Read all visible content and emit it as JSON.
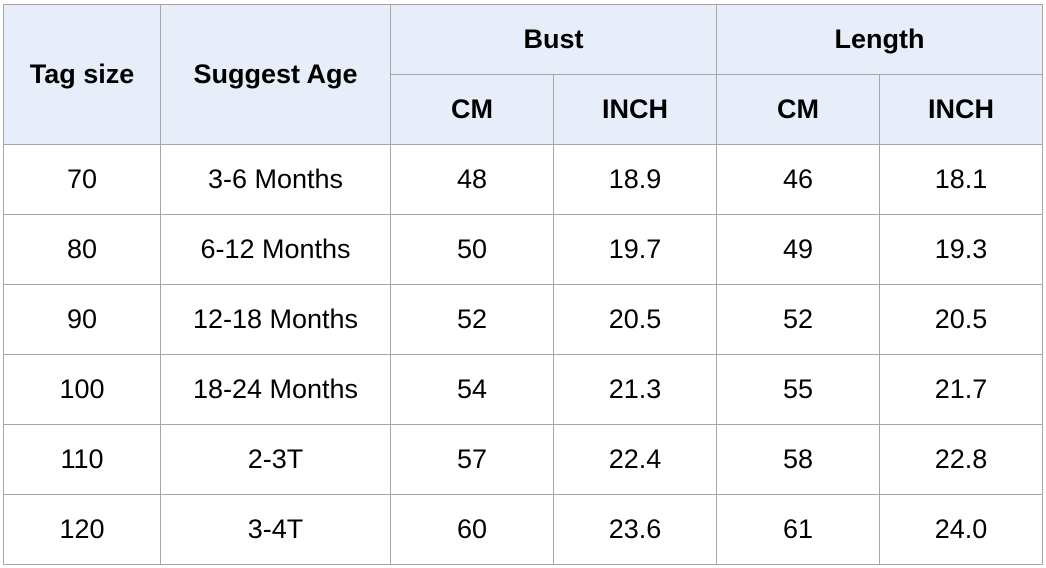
{
  "table": {
    "headers": {
      "tag_size": "Tag size",
      "suggest_age": "Suggest Age",
      "bust": "Bust",
      "length": "Length",
      "bust_cm": "CM",
      "bust_inch": "INCH",
      "length_cm": "CM",
      "length_inch": "INCH"
    },
    "rows": [
      {
        "tag": "70",
        "age": "3-6 Months",
        "bust_cm": "48",
        "bust_inch": "18.9",
        "length_cm": "46",
        "length_inch": "18.1"
      },
      {
        "tag": "80",
        "age": "6-12 Months",
        "bust_cm": "50",
        "bust_inch": "19.7",
        "length_cm": "49",
        "length_inch": "19.3"
      },
      {
        "tag": "90",
        "age": "12-18 Months",
        "bust_cm": "52",
        "bust_inch": "20.5",
        "length_cm": "52",
        "length_inch": "20.5"
      },
      {
        "tag": "100",
        "age": "18-24 Months",
        "bust_cm": "54",
        "bust_inch": "21.3",
        "length_cm": "55",
        "length_inch": "21.7"
      },
      {
        "tag": "110",
        "age": "2-3T",
        "bust_cm": "57",
        "bust_inch": "22.4",
        "length_cm": "58",
        "length_inch": "22.8"
      },
      {
        "tag": "120",
        "age": "3-4T",
        "bust_cm": "60",
        "bust_inch": "23.6",
        "length_cm": "61",
        "length_inch": "24.0"
      }
    ]
  },
  "colors": {
    "header_bg": "#e7eef9",
    "border": "#a6a6a6"
  }
}
